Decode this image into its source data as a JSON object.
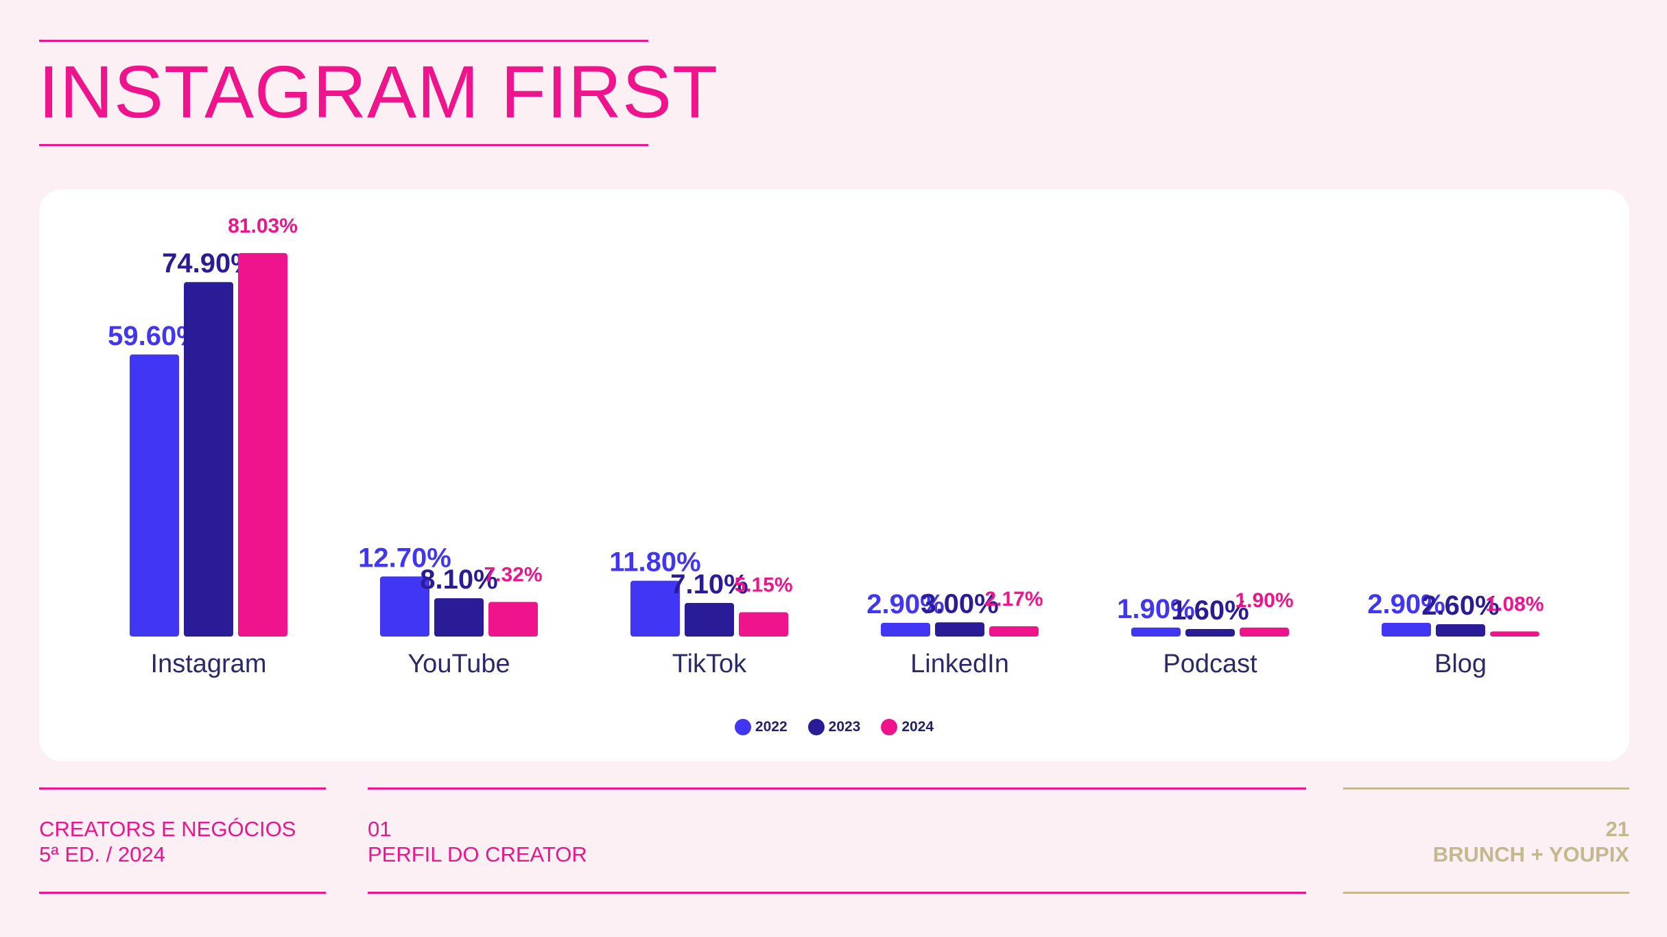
{
  "header": {
    "title": "INSTAGRAM FIRST"
  },
  "footer": {
    "left_line1": "CREATORS E NEGÓCIOS",
    "left_line2": "5ª ED. / 2024",
    "mid_line1": "01",
    "mid_line2": "PERFIL DO CREATOR",
    "right_line1": "21",
    "right_line2": "BRUNCH + YOUPIX"
  },
  "colors": {
    "s2022": "#4236f5",
    "s2023": "#2a1c96",
    "s2024": "#f0148c",
    "accent": "#f0148c",
    "gold": "#c4b88c"
  },
  "chart_data": {
    "type": "bar",
    "title": "",
    "xlabel": "",
    "ylabel": "",
    "ylim": [
      0,
      100
    ],
    "categories": [
      "Instagram",
      "YouTube",
      "TikTok",
      "LinkedIn",
      "Podcast",
      "Blog"
    ],
    "series": [
      {
        "name": "2022",
        "values": [
          59.6,
          12.7,
          11.8,
          2.9,
          1.9,
          2.9
        ],
        "labels": [
          "59.60%",
          "12.70%",
          "11.80%",
          "2.90%",
          "1.90%",
          "2.90%"
        ]
      },
      {
        "name": "2023",
        "values": [
          74.9,
          8.1,
          7.1,
          3.0,
          1.6,
          2.6
        ],
        "labels": [
          "74.90%",
          "8.10%",
          "7.10%",
          "3.00%",
          "1.60%",
          "2.60%"
        ]
      },
      {
        "name": "2024",
        "values": [
          81.03,
          7.32,
          5.15,
          2.17,
          1.9,
          1.08
        ],
        "labels": [
          "81.03%",
          "7.32%",
          "5.15%",
          "2.17%",
          "1.90%",
          "1.08%"
        ]
      }
    ],
    "legend": [
      "2022",
      "2023",
      "2024"
    ],
    "legend_position": "bottom-center"
  }
}
